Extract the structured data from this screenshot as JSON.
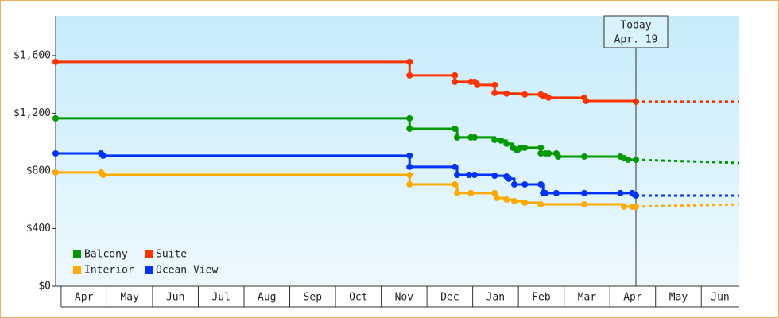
{
  "chart_data": {
    "type": "step-line",
    "xlim": [
      -0.12,
      14.83
    ],
    "xticks": [
      {
        "value": 0.5,
        "label": "Apr"
      },
      {
        "value": 1.5,
        "label": "May"
      },
      {
        "value": 2.5,
        "label": "Jun"
      },
      {
        "value": 3.5,
        "label": "Jul"
      },
      {
        "value": 4.5,
        "label": "Aug"
      },
      {
        "value": 5.5,
        "label": "Sep"
      },
      {
        "value": 6.5,
        "label": "Oct"
      },
      {
        "value": 7.5,
        "label": "Nov"
      },
      {
        "value": 8.5,
        "label": "Dec"
      },
      {
        "value": 9.5,
        "label": "Jan"
      },
      {
        "value": 10.5,
        "label": "Feb"
      },
      {
        "value": 11.5,
        "label": "Mar"
      },
      {
        "value": 12.5,
        "label": "Apr"
      },
      {
        "value": 13.5,
        "label": "May"
      },
      {
        "value": 14.5,
        "label": "Jun"
      }
    ],
    "ylim": [
      0,
      1875
    ],
    "yticks": [
      {
        "value": 0,
        "label": "$0"
      },
      {
        "value": 400,
        "label": "$400"
      },
      {
        "value": 800,
        "label": "$800"
      },
      {
        "value": 1200,
        "label": "$1,200"
      },
      {
        "value": 1600,
        "label": "$1,600"
      }
    ],
    "grid": false,
    "legend": "lower left",
    "today": {
      "x": 12.57,
      "label": [
        "Today",
        "Apr. 19"
      ]
    },
    "series": [
      {
        "name": "Suite",
        "color": "#ff3300",
        "x": [
          -0.12,
          7.62,
          7.62,
          8.61,
          8.61,
          8.96,
          9.04,
          9.1,
          9.48,
          9.48,
          9.74,
          10.14,
          10.49,
          10.54,
          10.59,
          10.66,
          11.44,
          11.48,
          12.57
        ],
        "values": [
          1556,
          1556,
          1462,
          1462,
          1418,
          1418,
          1418,
          1396,
          1396,
          1341,
          1336,
          1330,
          1330,
          1319,
          1319,
          1308,
          1308,
          1285,
          1280
        ],
        "projection": {
          "x": [
            14.83
          ],
          "values": [
            1280
          ]
        }
      },
      {
        "name": "Balcony",
        "color": "#009900",
        "x": [
          -0.12,
          7.62,
          7.62,
          8.61,
          8.66,
          8.96,
          9.04,
          9.48,
          9.62,
          9.74,
          9.88,
          9.97,
          10.05,
          10.14,
          10.49,
          10.49,
          10.59,
          10.66,
          10.83,
          10.87,
          11.44,
          12.23,
          12.31,
          12.4,
          12.57
        ],
        "values": [
          1164,
          1164,
          1092,
          1092,
          1032,
          1032,
          1032,
          1015,
          1010,
          988,
          960,
          943,
          960,
          960,
          960,
          921,
          921,
          921,
          921,
          899,
          899,
          899,
          888,
          877,
          877
        ],
        "projection": {
          "x": [
            14.83
          ],
          "values": [
            855
          ]
        }
      },
      {
        "name": "Interior",
        "color": "#ffaa00",
        "x": [
          -0.12,
          0.87,
          0.92,
          7.62,
          7.62,
          8.61,
          8.66,
          8.96,
          9.48,
          9.53,
          9.74,
          9.91,
          10.14,
          10.49,
          11.44,
          12.31,
          12.49,
          12.57
        ],
        "values": [
          789,
          789,
          772,
          772,
          706,
          706,
          646,
          646,
          646,
          612,
          601,
          590,
          579,
          568,
          568,
          552,
          552,
          552
        ],
        "projection": {
          "x": [
            14.83
          ],
          "values": [
            568
          ]
        }
      },
      {
        "name": "Ocean View",
        "color": "#0033ff",
        "x": [
          -0.12,
          0.87,
          0.92,
          7.62,
          7.62,
          8.61,
          8.66,
          8.92,
          9.04,
          9.48,
          9.74,
          9.79,
          9.91,
          10.14,
          10.49,
          10.54,
          10.59,
          10.83,
          11.44,
          12.23,
          12.49,
          12.54,
          12.57
        ],
        "values": [
          921,
          921,
          905,
          905,
          828,
          828,
          772,
          772,
          772,
          766,
          761,
          745,
          706,
          706,
          706,
          646,
          646,
          646,
          646,
          646,
          646,
          635,
          629
        ],
        "projection": {
          "x": [
            14.83
          ],
          "values": [
            629
          ]
        }
      }
    ]
  }
}
